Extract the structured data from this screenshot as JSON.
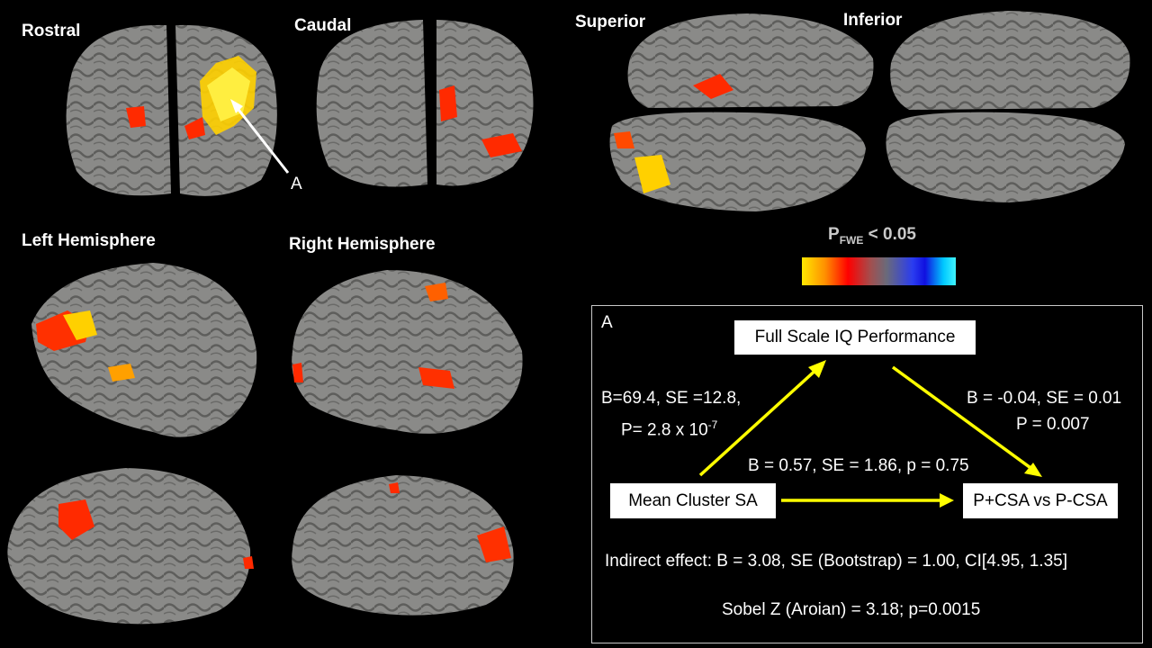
{
  "views": {
    "rostral": "Rostral",
    "caudal": "Caudal",
    "superior": "Superior",
    "inferior": "Inferior",
    "left_hemisphere": "Left Hemisphere",
    "right_hemisphere": "Right Hemisphere"
  },
  "annotation_marker": "A",
  "legend": {
    "title_main": "P",
    "title_sub": "FWE",
    "title_rest": " < 0.05",
    "colors": [
      "#ffe800",
      "#ff0000",
      "#6a6a7a",
      "#1010e0",
      "#40f4ff"
    ]
  },
  "mediation": {
    "panel_label": "A",
    "mediator": "Full Scale IQ Performance",
    "predictor": "Mean Cluster SA",
    "outcome": "P+CSA vs P-CSA",
    "path_a": {
      "line1": "B=69.4, SE =12.8,",
      "line2_prefix": "P= 2.8 x 10",
      "line2_exp": "-7"
    },
    "path_b": {
      "line1": "B = -0.04, SE = 0.01",
      "line2": "P = 0.007"
    },
    "path_c": "B = 0.57, SE = 1.86, p = 0.75",
    "indirect": "Indirect effect: B = 3.08, SE (Bootstrap) = 1.00, CI[4.95, 1.35]",
    "sobel": "Sobel Z (Aroian) = 3.18; p=0.0015",
    "arrow_color": "#ffff00"
  }
}
